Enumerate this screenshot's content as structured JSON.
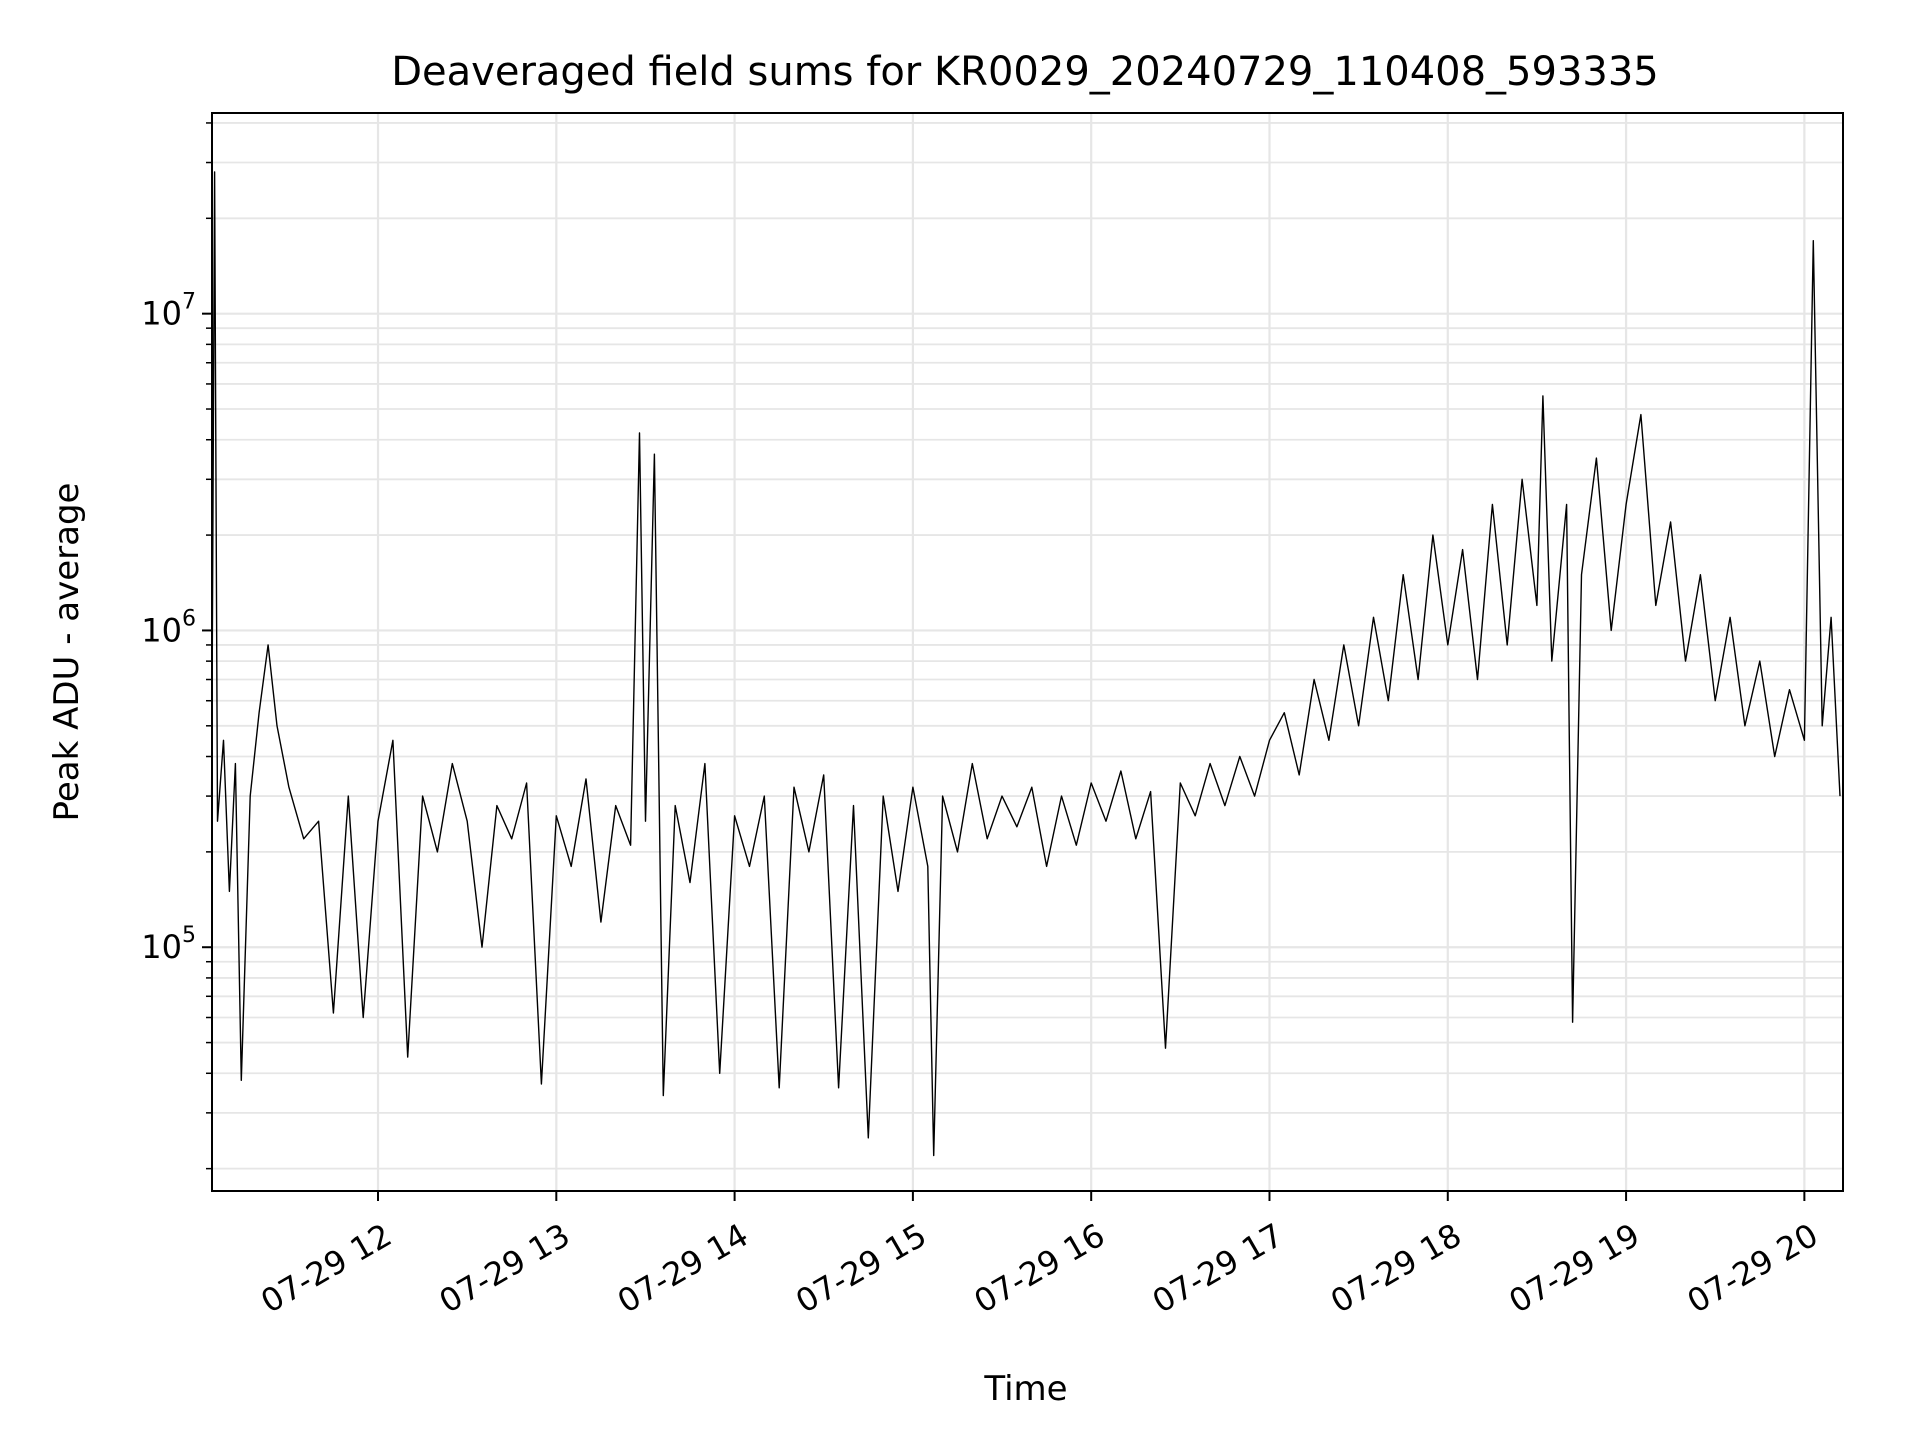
{
  "chart_data": {
    "type": "line",
    "title": "Deaveraged field sums for KR0029_20240729_110408_593335",
    "xlabel": "Time",
    "ylabel": "Peak ADU - average",
    "y_scale": "log",
    "grid": true,
    "line_color": "#000000",
    "grid_color": "#e6e6e6",
    "xlim": [
      "2024-07-29 11:04:08",
      "2024-07-29 20:13:00"
    ],
    "ylim": [
      17000,
      43000000
    ],
    "x_ticks": [
      {
        "time": "2024-07-29 12:00",
        "label": "07-29 12"
      },
      {
        "time": "2024-07-29 13:00",
        "label": "07-29 13"
      },
      {
        "time": "2024-07-29 14:00",
        "label": "07-29 14"
      },
      {
        "time": "2024-07-29 15:00",
        "label": "07-29 15"
      },
      {
        "time": "2024-07-29 16:00",
        "label": "07-29 16"
      },
      {
        "time": "2024-07-29 17:00",
        "label": "07-29 17"
      },
      {
        "time": "2024-07-29 18:00",
        "label": "07-29 18"
      },
      {
        "time": "2024-07-29 19:00",
        "label": "07-29 19"
      },
      {
        "time": "2024-07-29 20:00",
        "label": "07-29 20"
      }
    ],
    "y_ticks": [
      {
        "value": 100000,
        "base": "10",
        "exp": "5"
      },
      {
        "value": 1000000,
        "base": "10",
        "exp": "6"
      },
      {
        "value": 10000000,
        "base": "10",
        "exp": "7"
      }
    ],
    "series": [
      {
        "points": [
          [
            "2024-07-29 11:04",
            300000
          ],
          [
            "2024-07-29 11:05",
            28000000
          ],
          [
            "2024-07-29 11:06",
            250000
          ],
          [
            "2024-07-29 11:08",
            450000
          ],
          [
            "2024-07-29 11:10",
            150000
          ],
          [
            "2024-07-29 11:12",
            380000
          ],
          [
            "2024-07-29 11:14",
            38000
          ],
          [
            "2024-07-29 11:17",
            300000
          ],
          [
            "2024-07-29 11:20",
            550000
          ],
          [
            "2024-07-29 11:23",
            900000
          ],
          [
            "2024-07-29 11:26",
            500000
          ],
          [
            "2024-07-29 11:30",
            320000
          ],
          [
            "2024-07-29 11:35",
            220000
          ],
          [
            "2024-07-29 11:40",
            250000
          ],
          [
            "2024-07-29 11:45",
            62000
          ],
          [
            "2024-07-29 11:50",
            300000
          ],
          [
            "2024-07-29 11:55",
            60000
          ],
          [
            "2024-07-29 12:00",
            250000
          ],
          [
            "2024-07-29 12:05",
            450000
          ],
          [
            "2024-07-29 12:10",
            45000
          ],
          [
            "2024-07-29 12:15",
            300000
          ],
          [
            "2024-07-29 12:20",
            200000
          ],
          [
            "2024-07-29 12:25",
            380000
          ],
          [
            "2024-07-29 12:30",
            250000
          ],
          [
            "2024-07-29 12:35",
            100000
          ],
          [
            "2024-07-29 12:40",
            280000
          ],
          [
            "2024-07-29 12:45",
            220000
          ],
          [
            "2024-07-29 12:50",
            330000
          ],
          [
            "2024-07-29 12:55",
            37000
          ],
          [
            "2024-07-29 13:00",
            260000
          ],
          [
            "2024-07-29 13:05",
            180000
          ],
          [
            "2024-07-29 13:10",
            340000
          ],
          [
            "2024-07-29 13:15",
            120000
          ],
          [
            "2024-07-29 13:20",
            280000
          ],
          [
            "2024-07-29 13:25",
            210000
          ],
          [
            "2024-07-29 13:28",
            4200000
          ],
          [
            "2024-07-29 13:30",
            250000
          ],
          [
            "2024-07-29 13:33",
            3600000
          ],
          [
            "2024-07-29 13:36",
            34000
          ],
          [
            "2024-07-29 13:40",
            280000
          ],
          [
            "2024-07-29 13:45",
            160000
          ],
          [
            "2024-07-29 13:50",
            380000
          ],
          [
            "2024-07-29 13:55",
            40000
          ],
          [
            "2024-07-29 14:00",
            260000
          ],
          [
            "2024-07-29 14:05",
            180000
          ],
          [
            "2024-07-29 14:10",
            300000
          ],
          [
            "2024-07-29 14:15",
            36000
          ],
          [
            "2024-07-29 14:20",
            320000
          ],
          [
            "2024-07-29 14:25",
            200000
          ],
          [
            "2024-07-29 14:30",
            350000
          ],
          [
            "2024-07-29 14:35",
            36000
          ],
          [
            "2024-07-29 14:40",
            280000
          ],
          [
            "2024-07-29 14:45",
            25000
          ],
          [
            "2024-07-29 14:50",
            300000
          ],
          [
            "2024-07-29 14:55",
            150000
          ],
          [
            "2024-07-29 15:00",
            320000
          ],
          [
            "2024-07-29 15:05",
            180000
          ],
          [
            "2024-07-29 15:07",
            22000
          ],
          [
            "2024-07-29 15:10",
            300000
          ],
          [
            "2024-07-29 15:15",
            200000
          ],
          [
            "2024-07-29 15:20",
            380000
          ],
          [
            "2024-07-29 15:25",
            220000
          ],
          [
            "2024-07-29 15:30",
            300000
          ],
          [
            "2024-07-29 15:35",
            240000
          ],
          [
            "2024-07-29 15:40",
            320000
          ],
          [
            "2024-07-29 15:45",
            180000
          ],
          [
            "2024-07-29 15:50",
            300000
          ],
          [
            "2024-07-29 15:55",
            210000
          ],
          [
            "2024-07-29 16:00",
            330000
          ],
          [
            "2024-07-29 16:05",
            250000
          ],
          [
            "2024-07-29 16:10",
            360000
          ],
          [
            "2024-07-29 16:15",
            220000
          ],
          [
            "2024-07-29 16:20",
            310000
          ],
          [
            "2024-07-29 16:25",
            48000
          ],
          [
            "2024-07-29 16:30",
            330000
          ],
          [
            "2024-07-29 16:35",
            260000
          ],
          [
            "2024-07-29 16:40",
            380000
          ],
          [
            "2024-07-29 16:45",
            280000
          ],
          [
            "2024-07-29 16:50",
            400000
          ],
          [
            "2024-07-29 16:55",
            300000
          ],
          [
            "2024-07-29 17:00",
            450000
          ],
          [
            "2024-07-29 17:05",
            550000
          ],
          [
            "2024-07-29 17:10",
            350000
          ],
          [
            "2024-07-29 17:15",
            700000
          ],
          [
            "2024-07-29 17:20",
            450000
          ],
          [
            "2024-07-29 17:25",
            900000
          ],
          [
            "2024-07-29 17:30",
            500000
          ],
          [
            "2024-07-29 17:35",
            1100000
          ],
          [
            "2024-07-29 17:40",
            600000
          ],
          [
            "2024-07-29 17:45",
            1500000
          ],
          [
            "2024-07-29 17:50",
            700000
          ],
          [
            "2024-07-29 17:55",
            2000000
          ],
          [
            "2024-07-29 18:00",
            900000
          ],
          [
            "2024-07-29 18:05",
            1800000
          ],
          [
            "2024-07-29 18:10",
            700000
          ],
          [
            "2024-07-29 18:15",
            2500000
          ],
          [
            "2024-07-29 18:20",
            900000
          ],
          [
            "2024-07-29 18:25",
            3000000
          ],
          [
            "2024-07-29 18:30",
            1200000
          ],
          [
            "2024-07-29 18:32",
            5500000
          ],
          [
            "2024-07-29 18:35",
            800000
          ],
          [
            "2024-07-29 18:40",
            2500000
          ],
          [
            "2024-07-29 18:42",
            58000
          ],
          [
            "2024-07-29 18:45",
            1500000
          ],
          [
            "2024-07-29 18:50",
            3500000
          ],
          [
            "2024-07-29 18:55",
            1000000
          ],
          [
            "2024-07-29 19:00",
            2500000
          ],
          [
            "2024-07-29 19:05",
            4800000
          ],
          [
            "2024-07-29 19:10",
            1200000
          ],
          [
            "2024-07-29 19:15",
            2200000
          ],
          [
            "2024-07-29 19:20",
            800000
          ],
          [
            "2024-07-29 19:25",
            1500000
          ],
          [
            "2024-07-29 19:30",
            600000
          ],
          [
            "2024-07-29 19:35",
            1100000
          ],
          [
            "2024-07-29 19:40",
            500000
          ],
          [
            "2024-07-29 19:45",
            800000
          ],
          [
            "2024-07-29 19:50",
            400000
          ],
          [
            "2024-07-29 19:55",
            650000
          ],
          [
            "2024-07-29 20:00",
            450000
          ],
          [
            "2024-07-29 20:03",
            17000000
          ],
          [
            "2024-07-29 20:06",
            500000
          ],
          [
            "2024-07-29 20:09",
            1100000
          ],
          [
            "2024-07-29 20:12",
            300000
          ]
        ]
      }
    ]
  }
}
